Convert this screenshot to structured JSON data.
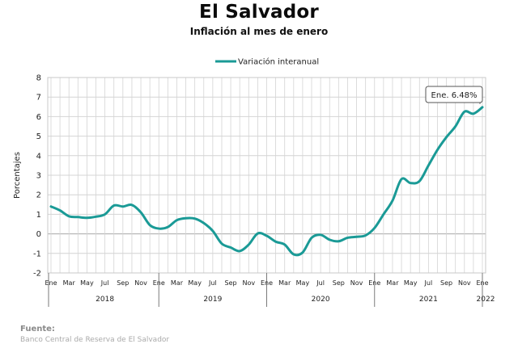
{
  "header": {
    "title": "El Salvador",
    "subtitle": "Inflación al mes de enero"
  },
  "footer": {
    "source_label": "Fuente:",
    "source_text": "Banco Central de Reserva de El Salvador"
  },
  "colors": {
    "series": "#1a9a96",
    "grid": "#d4d4d4",
    "axis": "#7a7a7a"
  },
  "chart_data": {
    "type": "line",
    "title": "El Salvador",
    "subtitle": "Inflación al mes de enero",
    "xlabel": "",
    "ylabel": "Porcentajes",
    "ylim": [
      -2,
      8
    ],
    "yticks": [
      -2,
      -1,
      0,
      1,
      2,
      3,
      4,
      5,
      6,
      7,
      8
    ],
    "grid": true,
    "legend": {
      "position": "top-center"
    },
    "month_tick_labels": [
      "Ene",
      "Mar",
      "May",
      "Jul",
      "Sep",
      "Nov"
    ],
    "final_tick_label": "Ene",
    "year_labels": [
      "2018",
      "2019",
      "2020",
      "2021",
      "2022"
    ],
    "annotation": {
      "text": "Ene. 6.48%",
      "x": "2022-01",
      "y": 6.48
    },
    "series": [
      {
        "name": "Variación interanual",
        "x": [
          "2018-01",
          "2018-02",
          "2018-03",
          "2018-04",
          "2018-05",
          "2018-06",
          "2018-07",
          "2018-08",
          "2018-09",
          "2018-10",
          "2018-11",
          "2018-12",
          "2019-01",
          "2019-02",
          "2019-03",
          "2019-04",
          "2019-05",
          "2019-06",
          "2019-07",
          "2019-08",
          "2019-09",
          "2019-10",
          "2019-11",
          "2019-12",
          "2020-01",
          "2020-02",
          "2020-03",
          "2020-04",
          "2020-05",
          "2020-06",
          "2020-07",
          "2020-08",
          "2020-09",
          "2020-10",
          "2020-11",
          "2020-12",
          "2021-01",
          "2021-02",
          "2021-03",
          "2021-04",
          "2021-05",
          "2021-06",
          "2021-07",
          "2021-08",
          "2021-09",
          "2021-10",
          "2021-11",
          "2021-12",
          "2022-01"
        ],
        "values": [
          1.4,
          1.2,
          0.9,
          0.86,
          0.82,
          0.88,
          1.0,
          1.45,
          1.4,
          1.48,
          1.1,
          0.45,
          0.27,
          0.35,
          0.7,
          0.8,
          0.78,
          0.55,
          0.15,
          -0.5,
          -0.7,
          -0.88,
          -0.55,
          0.02,
          -0.1,
          -0.4,
          -0.55,
          -1.05,
          -0.95,
          -0.2,
          -0.05,
          -0.3,
          -0.38,
          -0.2,
          -0.15,
          -0.08,
          0.3,
          1.0,
          1.7,
          2.8,
          2.6,
          2.7,
          3.5,
          4.3,
          4.95,
          5.5,
          6.25,
          6.15,
          6.48
        ]
      }
    ]
  }
}
